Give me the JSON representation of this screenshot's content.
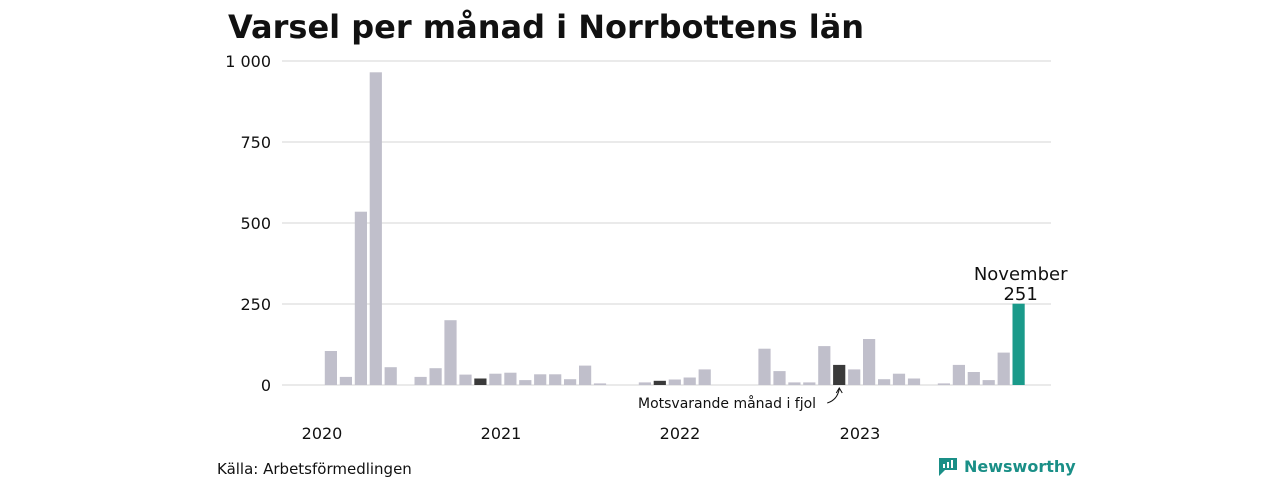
{
  "chart_data": {
    "type": "bar",
    "title": "Varsel per månad i Norrbottens län",
    "source": "Källa: Arbetsförmedlingen",
    "brand": "Newsworthy",
    "ylim": [
      0,
      1000
    ],
    "yticks": [
      0,
      250,
      500,
      750,
      1000
    ],
    "ytick_labels": [
      "0",
      "250",
      "500",
      "750",
      "1 000"
    ],
    "grid": true,
    "year_labels": [
      "2020",
      "2021",
      "2022",
      "2023"
    ],
    "colors": {
      "default": "#c0bfcb",
      "same_month_last_year": "#3a3a3a",
      "current": "#1a9a8a",
      "grid": "#dddddd"
    },
    "values": [
      0,
      105,
      25,
      535,
      965,
      55,
      0,
      25,
      52,
      200,
      32,
      20,
      35,
      38,
      15,
      33,
      33,
      18,
      60,
      5,
      0,
      0,
      8,
      13,
      17,
      23,
      48,
      0,
      0,
      0,
      112,
      43,
      8,
      8,
      120,
      62,
      48,
      142,
      18,
      35,
      20,
      0,
      5,
      62,
      40,
      15,
      100,
      251
    ],
    "highlights": [
      {
        "index": 11,
        "role": "same_month_last_year"
      },
      {
        "index": 23,
        "role": "same_month_last_year"
      },
      {
        "index": 35,
        "role": "same_month_last_year"
      },
      {
        "index": 47,
        "role": "current"
      }
    ],
    "current_label": "November",
    "current_value_label": "251",
    "annotation": "Motsvarande månad i fjol"
  }
}
